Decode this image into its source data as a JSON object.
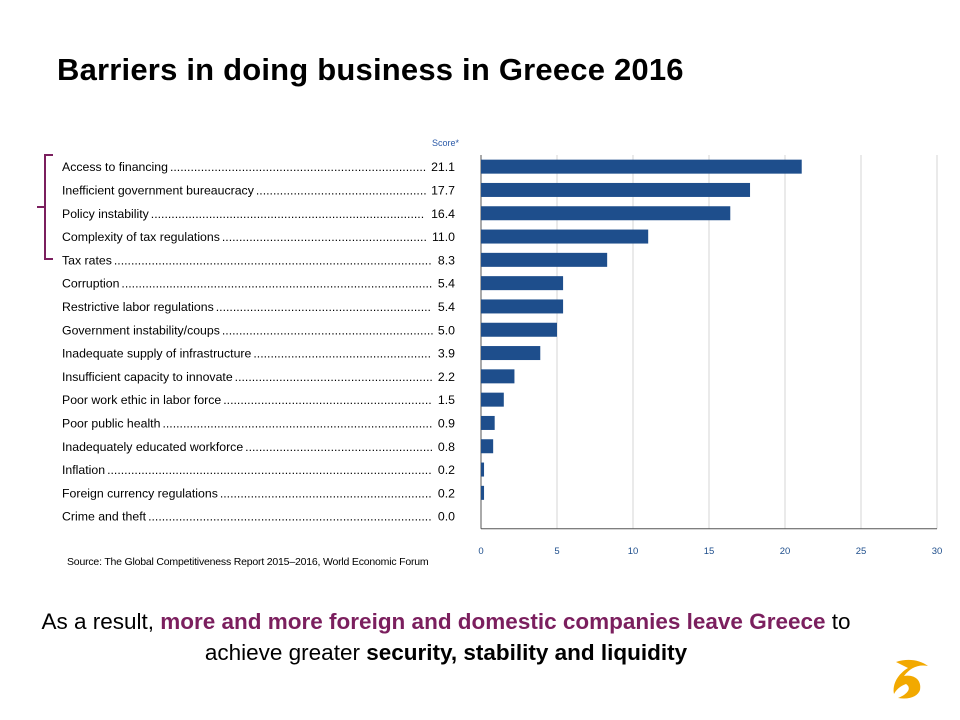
{
  "title": "Barriers in doing business in Greece 2016",
  "chart_data": {
    "type": "bar",
    "orientation": "horizontal",
    "axis_header": "Score*",
    "categories": [
      "Access to financing",
      "Inefficient government bureaucracy",
      "Policy instability",
      "Complexity of tax regulations",
      "Tax rates",
      "Corruption",
      "Restrictive labor regulations",
      "Government instability/coups",
      "Inadequate supply of infrastructure",
      "Insufficient capacity to innovate",
      "Poor work ethic in labor force",
      "Poor public health",
      "Inadequately educated workforce",
      "Inflation",
      "Foreign currency regulations",
      "Crime and theft"
    ],
    "value_labels": [
      "21.1",
      "17.7",
      "16.4",
      "11.0",
      "8.3",
      "5.4",
      "5.4",
      "5.0",
      "3.9",
      "2.2",
      "1.5",
      "0.9",
      "0.8",
      "0.2",
      "0.2",
      "0.0"
    ],
    "values": [
      21.1,
      17.7,
      16.4,
      11.0,
      8.3,
      5.4,
      5.4,
      5.0,
      3.9,
      2.2,
      1.5,
      0.9,
      0.8,
      0.2,
      0.2,
      0.0
    ],
    "xlim": [
      0,
      30
    ],
    "xticks": [
      "0",
      "5",
      "10",
      "15",
      "20",
      "25",
      "30"
    ],
    "grid": "vertical",
    "bar_color": "#1e4e8c",
    "highlight_bracket_rows": [
      0,
      4
    ]
  },
  "source": "Source: The Global Competitiveness Report 2015–2016, World Economic Forum",
  "conclusion": {
    "part1": "As a result, ",
    "part2": "more and more foreign and domestic companies leave Greece",
    "part3": " to achieve greater ",
    "part4": "security, stability and liquidity"
  },
  "colors": {
    "highlight": "#7b1f5e",
    "bracket": "#7b1f5e",
    "axis_header": "#2b5aa8",
    "logo": "#f2a900"
  },
  "logo_icon": "astrazeneca-logo-icon"
}
